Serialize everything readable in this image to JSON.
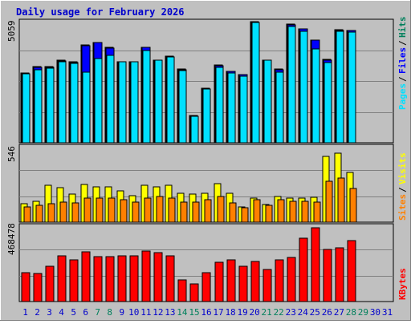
{
  "title": "Daily usage for February 2026",
  "colors": {
    "background": "#c0c0c0",
    "title": "#0000cc",
    "hits": "#00805c",
    "files": "#0000ff",
    "pages": "#00e0ff",
    "visits": "#ffff00",
    "sites": "#ff8000",
    "kbytes": "#ff0000",
    "weekday_tick": "#0000cc",
    "weekend_tick": "#00805c"
  },
  "chart_data": [
    {
      "type": "bar",
      "panel": "top",
      "ymax_label": "5059",
      "ylim": [
        0,
        5059
      ],
      "legend": [
        "Pages",
        "Files",
        "Hits"
      ],
      "categories": [
        "1",
        "2",
        "3",
        "4",
        "5",
        "6",
        "7",
        "8",
        "9",
        "10",
        "11",
        "12",
        "13",
        "14",
        "15",
        "16",
        "17",
        "18",
        "19",
        "20",
        "21",
        "22",
        "23",
        "24",
        "25",
        "26",
        "27",
        "28",
        "29",
        "30",
        "31"
      ],
      "series": [
        {
          "name": "Hits",
          "values": [
            2900,
            3170,
            3170,
            3460,
            3380,
            4100,
            4200,
            4000,
            3400,
            3400,
            4000,
            3460,
            3620,
            3070,
            1140,
            2270,
            3240,
            2990,
            2860,
            5050,
            3460,
            3070,
            4960,
            4770,
            4300,
            3480,
            4720,
            4700,
            0,
            0,
            0
          ]
        },
        {
          "name": "Files",
          "values": [
            2880,
            3150,
            3150,
            3430,
            3350,
            4070,
            4180,
            3970,
            3380,
            3380,
            3980,
            3440,
            3600,
            3050,
            1120,
            2250,
            3220,
            2970,
            2840,
            5030,
            3440,
            3050,
            4940,
            4750,
            4280,
            3460,
            4700,
            4680,
            0,
            0,
            0
          ]
        },
        {
          "name": "Pages",
          "values": [
            2880,
            3050,
            3120,
            3400,
            3330,
            2950,
            3530,
            3660,
            3370,
            3380,
            3850,
            3450,
            3600,
            3000,
            1110,
            2260,
            3160,
            2910,
            2780,
            5030,
            3440,
            2940,
            4860,
            4650,
            3930,
            3360,
            4650,
            4630,
            0,
            0,
            0
          ]
        }
      ]
    },
    {
      "type": "bar",
      "panel": "middle",
      "ymax_label": "546",
      "ylim": [
        0,
        546
      ],
      "legend": [
        "Sites",
        "Visits"
      ],
      "categories": [
        "1",
        "2",
        "3",
        "4",
        "5",
        "6",
        "7",
        "8",
        "9",
        "10",
        "11",
        "12",
        "13",
        "14",
        "15",
        "16",
        "17",
        "18",
        "19",
        "20",
        "21",
        "22",
        "23",
        "24",
        "25",
        "26",
        "27",
        "28",
        "29",
        "30",
        "31"
      ],
      "series": [
        {
          "name": "Visits",
          "values": [
            135,
            150,
            270,
            250,
            205,
            275,
            255,
            255,
            225,
            190,
            265,
            255,
            270,
            210,
            205,
            210,
            280,
            210,
            110,
            175,
            125,
            185,
            175,
            175,
            180,
            475,
            500,
            360,
            0,
            0,
            0
          ]
        },
        {
          "name": "Sites",
          "values": [
            110,
            120,
            135,
            145,
            140,
            175,
            175,
            175,
            160,
            145,
            175,
            185,
            175,
            145,
            145,
            160,
            185,
            140,
            105,
            160,
            120,
            160,
            150,
            150,
            145,
            295,
            320,
            245,
            0,
            0,
            0
          ]
        }
      ]
    },
    {
      "type": "bar",
      "panel": "bottom",
      "ymax_label": "468478",
      "ylim": [
        0,
        468478
      ],
      "legend": [
        "KBytes"
      ],
      "categories": [
        "1",
        "2",
        "3",
        "4",
        "5",
        "6",
        "7",
        "8",
        "9",
        "10",
        "11",
        "12",
        "13",
        "14",
        "15",
        "16",
        "17",
        "18",
        "19",
        "20",
        "21",
        "22",
        "23",
        "24",
        "25",
        "26",
        "27",
        "28",
        "29",
        "30",
        "31"
      ],
      "series": [
        {
          "name": "KBytes",
          "values": [
            185000,
            180000,
            225000,
            290000,
            267000,
            315000,
            285000,
            285000,
            290000,
            288000,
            323000,
            313000,
            290000,
            135000,
            110000,
            185000,
            250000,
            265000,
            225000,
            255000,
            205000,
            265000,
            280000,
            400000,
            468478,
            330000,
            340000,
            385000,
            0,
            0,
            0
          ]
        }
      ]
    }
  ],
  "x_tick_colors": [
    "weekday",
    "weekday",
    "weekday",
    "weekday",
    "weekday",
    "weekday",
    "weekend",
    "weekend",
    "weekday",
    "weekday",
    "weekday",
    "weekday",
    "weekday",
    "weekend",
    "weekend",
    "weekday",
    "weekday",
    "weekday",
    "weekday",
    "weekday",
    "weekend",
    "weekend",
    "weekday",
    "weekday",
    "weekday",
    "weekday",
    "weekday",
    "weekend",
    "weekend",
    "weekday",
    "weekday"
  ]
}
